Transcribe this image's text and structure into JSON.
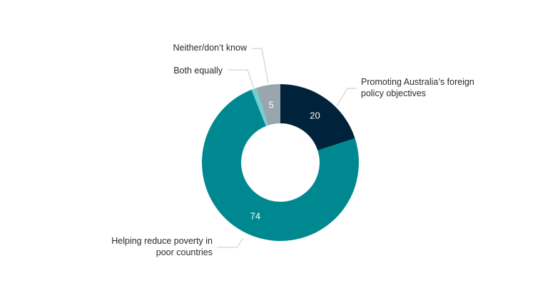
{
  "chart_data": {
    "type": "pie",
    "donut": true,
    "title": "",
    "slices": [
      {
        "label": "Promoting Australia's foreign policy objectives",
        "label_lines": [
          "Promoting Australia’s foreign",
          "policy objectives"
        ],
        "value": 20,
        "value_label": "20",
        "color": "#00223a"
      },
      {
        "label": "Helping reduce poverty in poor countries",
        "label_lines": [
          "Helping reduce poverty in",
          "poor countries"
        ],
        "value": 74,
        "value_label": "74",
        "color": "#008891"
      },
      {
        "label": "Both equally",
        "label_lines": [
          "Both equally"
        ],
        "value": 1,
        "value_label": "",
        "color": "#6fd1d1"
      },
      {
        "label": "Neither/don't know",
        "label_lines": [
          "Neither/don’t know"
        ],
        "value": 5,
        "value_label": "5",
        "color": "#9aa6ad"
      }
    ]
  }
}
